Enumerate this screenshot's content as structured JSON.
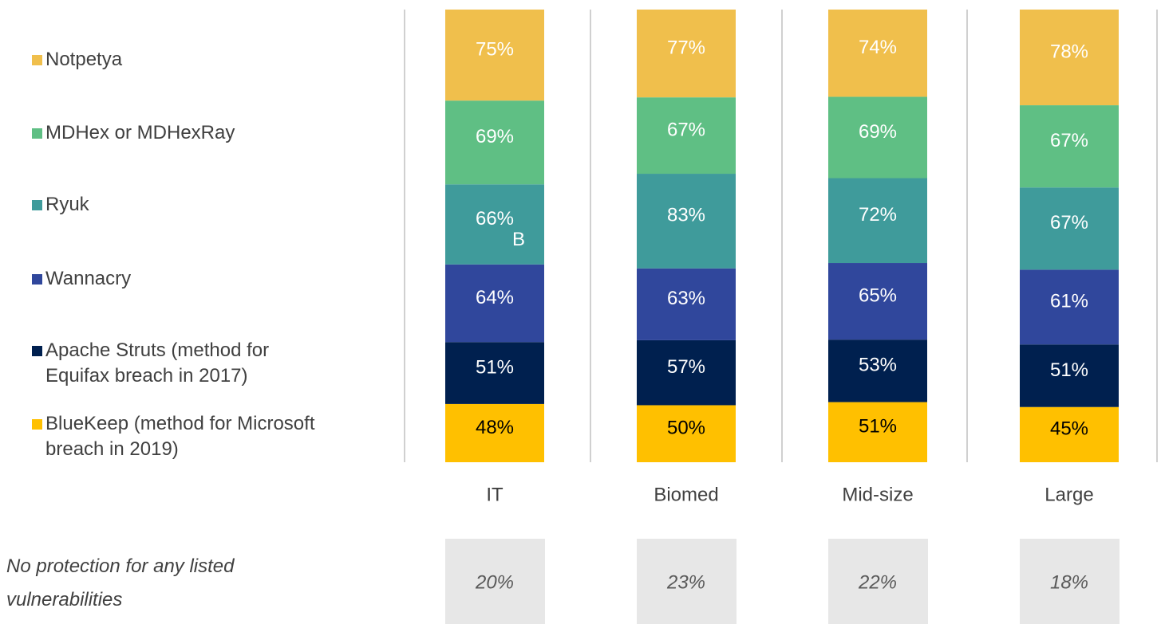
{
  "chart_data": {
    "type": "stacked_bar",
    "categories": [
      "IT",
      "Biomed",
      "Mid-size",
      "Large"
    ],
    "series": [
      {
        "name": "Notpetya",
        "color": "#f0bf4c",
        "values": [
          75,
          77,
          74,
          78
        ],
        "value_labels": [
          "75%",
          "77%",
          "74%",
          "78%"
        ]
      },
      {
        "name": "MDHex or MDHexRay",
        "color": "#5fbf84",
        "values": [
          69,
          67,
          69,
          67
        ],
        "value_labels": [
          "69%",
          "67%",
          "69%",
          "67%"
        ]
      },
      {
        "name": "Ryuk",
        "color": "#3f9b9b",
        "values": [
          66,
          83,
          72,
          67
        ],
        "value_labels": [
          "66%",
          "83%",
          "72%",
          "67%"
        ]
      },
      {
        "name": "Wannacry",
        "color": "#30479c",
        "values": [
          64,
          63,
          65,
          61
        ],
        "value_labels": [
          "64%",
          "63%",
          "65%",
          "61%"
        ]
      },
      {
        "name": "Apache Struts (method for Equifax breach in 2017)",
        "color": "#00204f",
        "values": [
          51,
          57,
          53,
          51
        ],
        "value_labels": [
          "51%",
          "57%",
          "53%",
          "51%"
        ]
      },
      {
        "name": "BlueKeep (method for Microsoft breach in 2019)",
        "color": "#ffc000",
        "values": [
          48,
          50,
          51,
          45
        ],
        "value_labels": [
          "48%",
          "50%",
          "51%",
          "45%"
        ]
      }
    ],
    "annotations": [
      "B"
    ],
    "no_protection": {
      "label": "No protection for any listed vulnerabilities",
      "values": [
        20,
        23,
        22,
        18
      ],
      "value_labels": [
        "20%",
        "23%",
        "22%",
        "18%"
      ]
    }
  }
}
